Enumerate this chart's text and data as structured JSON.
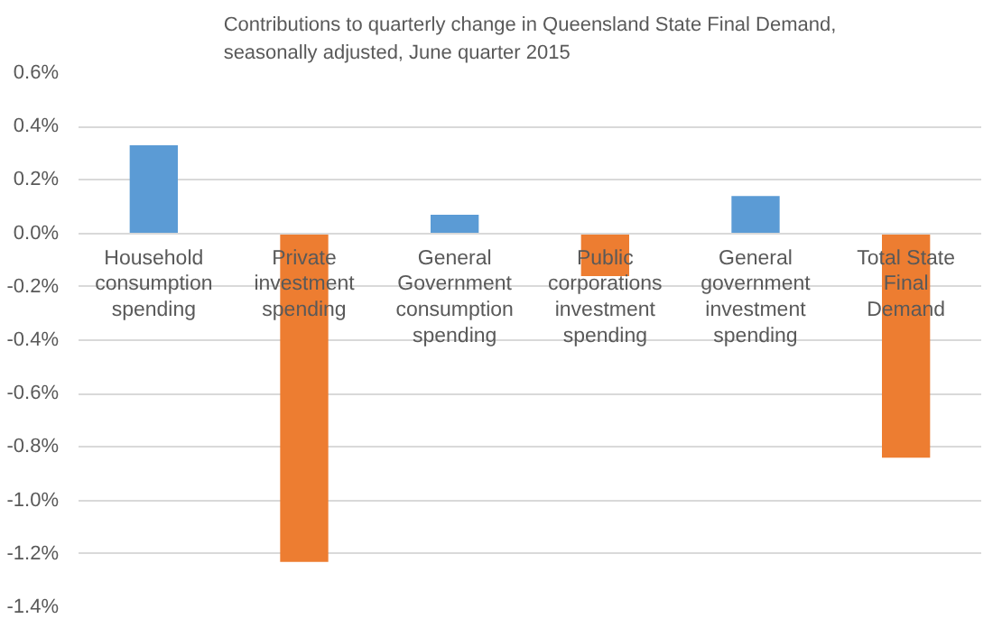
{
  "chart_data": {
    "type": "bar",
    "title": "Contributions to quarterly change in Queensland State Final Demand, seasonally adjusted, June quarter 2015",
    "categories": [
      "Household consumption spending",
      "Private investment spending",
      "General Government consumption spending",
      "Public corporations investment spending",
      "General government investment spending",
      "Total State Final Demand"
    ],
    "values": [
      0.33,
      -1.23,
      0.07,
      -0.16,
      0.14,
      -0.84
    ],
    "colors": [
      "#5b9bd5",
      "#ed7d31",
      "#5b9bd5",
      "#ed7d31",
      "#5b9bd5",
      "#ed7d31"
    ],
    "ylim": [
      -1.4,
      0.6
    ],
    "yticks": [
      {
        "value": 0.6,
        "label": "0.6%"
      },
      {
        "value": 0.4,
        "label": "0.4%"
      },
      {
        "value": 0.2,
        "label": "0.2%"
      },
      {
        "value": 0.0,
        "label": "0.0%"
      },
      {
        "value": -0.2,
        "label": "-0.2%"
      },
      {
        "value": -0.4,
        "label": "-0.4%"
      },
      {
        "value": -0.6,
        "label": "-0.6%"
      },
      {
        "value": -0.8,
        "label": "-0.8%"
      },
      {
        "value": -1.0,
        "label": "-1.0%"
      },
      {
        "value": -1.2,
        "label": "-1.2%"
      },
      {
        "value": -1.4,
        "label": "-1.4%"
      }
    ],
    "grid": "y"
  }
}
